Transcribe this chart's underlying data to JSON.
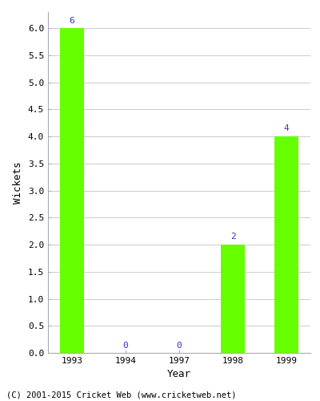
{
  "categories": [
    "1993",
    "1994",
    "1997",
    "1998",
    "1999"
  ],
  "values": [
    6,
    0,
    0,
    2,
    4
  ],
  "bar_color": "#66ff00",
  "bar_edgecolor": "#66ff00",
  "label_color": "#3333cc",
  "xlabel": "Year",
  "ylabel": "Wickets",
  "ylim": [
    0.0,
    6.3
  ],
  "yticks": [
    0.0,
    0.5,
    1.0,
    1.5,
    2.0,
    2.5,
    3.0,
    3.5,
    4.0,
    4.5,
    5.0,
    5.5,
    6.0
  ],
  "footnote": "(C) 2001-2015 Cricket Web (www.cricketweb.net)",
  "label_fontsize": 8,
  "axis_label_fontsize": 9,
  "tick_fontsize": 8,
  "footnote_fontsize": 7.5,
  "bar_width": 0.45
}
